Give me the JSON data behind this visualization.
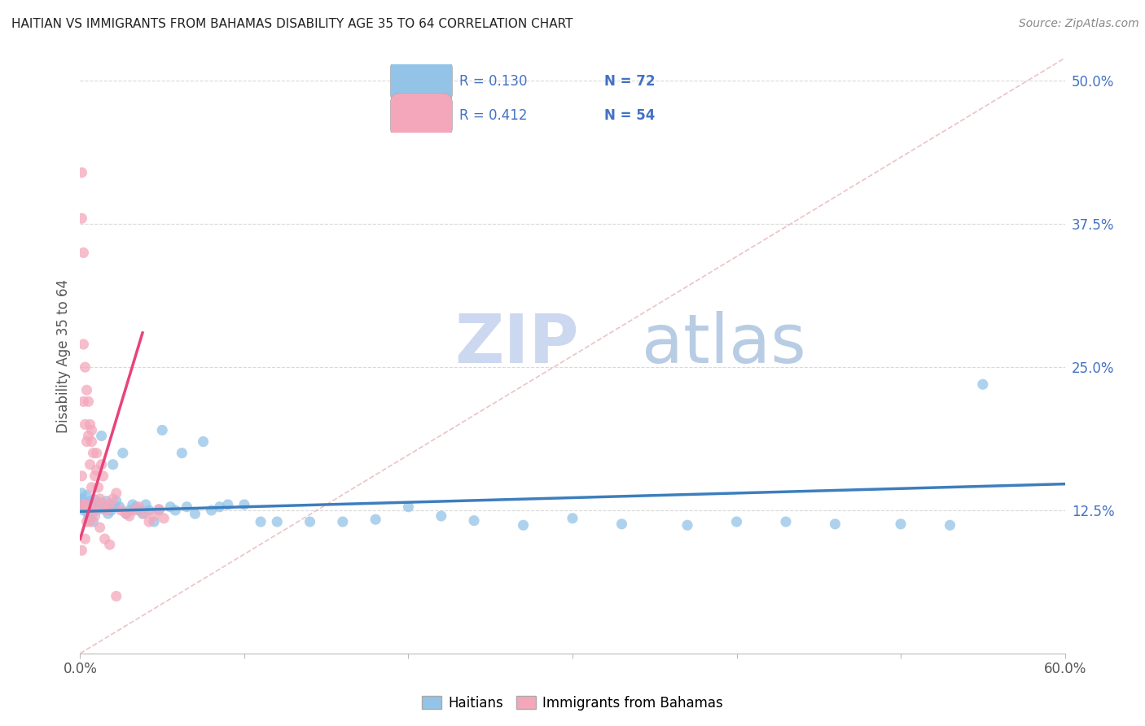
{
  "title": "HAITIAN VS IMMIGRANTS FROM BAHAMAS DISABILITY AGE 35 TO 64 CORRELATION CHART",
  "source": "Source: ZipAtlas.com",
  "ylabel": "Disability Age 35 to 64",
  "xlim": [
    0.0,
    0.6
  ],
  "ylim": [
    0.0,
    0.52
  ],
  "blue_color": "#93c4e8",
  "pink_color": "#f4a7bb",
  "trend_blue": "#3d7ebd",
  "trend_pink": "#e8437a",
  "diag_color": "#e8b4b8",
  "grid_color": "#d0d0d0",
  "title_color": "#222222",
  "right_tick_color": "#4472c4",
  "watermark_zip_color": "#d0dff5",
  "watermark_atlas_color": "#c0d0e8",
  "legend_text_color": "#4472c4",
  "legend_n_color": "#e05080",
  "blue_trend_start_x": 0.0,
  "blue_trend_start_y": 0.124,
  "blue_trend_end_x": 0.6,
  "blue_trend_end_y": 0.148,
  "pink_trend_start_x": 0.0,
  "pink_trend_start_y": 0.1,
  "pink_trend_end_x": 0.038,
  "pink_trend_end_y": 0.28,
  "haitians_x": [
    0.001,
    0.001,
    0.002,
    0.002,
    0.003,
    0.003,
    0.004,
    0.004,
    0.005,
    0.005,
    0.005,
    0.006,
    0.006,
    0.007,
    0.008,
    0.008,
    0.009,
    0.01,
    0.01,
    0.011,
    0.012,
    0.013,
    0.014,
    0.015,
    0.016,
    0.017,
    0.018,
    0.019,
    0.02,
    0.021,
    0.022,
    0.024,
    0.026,
    0.028,
    0.03,
    0.032,
    0.034,
    0.036,
    0.038,
    0.04,
    0.042,
    0.045,
    0.048,
    0.05,
    0.055,
    0.058,
    0.062,
    0.065,
    0.07,
    0.075,
    0.08,
    0.085,
    0.09,
    0.1,
    0.11,
    0.12,
    0.14,
    0.16,
    0.18,
    0.2,
    0.22,
    0.24,
    0.27,
    0.3,
    0.33,
    0.37,
    0.4,
    0.43,
    0.46,
    0.5,
    0.53,
    0.55
  ],
  "haitians_y": [
    0.135,
    0.14,
    0.125,
    0.132,
    0.128,
    0.13,
    0.138,
    0.125,
    0.122,
    0.13,
    0.118,
    0.127,
    0.133,
    0.121,
    0.129,
    0.115,
    0.134,
    0.125,
    0.13,
    0.128,
    0.132,
    0.19,
    0.126,
    0.128,
    0.133,
    0.122,
    0.13,
    0.125,
    0.165,
    0.128,
    0.133,
    0.128,
    0.175,
    0.122,
    0.125,
    0.13,
    0.128,
    0.125,
    0.122,
    0.13,
    0.125,
    0.115,
    0.125,
    0.195,
    0.128,
    0.125,
    0.175,
    0.128,
    0.122,
    0.185,
    0.125,
    0.128,
    0.13,
    0.13,
    0.115,
    0.115,
    0.115,
    0.115,
    0.117,
    0.128,
    0.12,
    0.116,
    0.112,
    0.118,
    0.113,
    0.112,
    0.115,
    0.115,
    0.113,
    0.113,
    0.112,
    0.235
  ],
  "bahamas_x": [
    0.001,
    0.001,
    0.002,
    0.002,
    0.002,
    0.003,
    0.003,
    0.004,
    0.004,
    0.005,
    0.005,
    0.006,
    0.006,
    0.007,
    0.007,
    0.008,
    0.009,
    0.01,
    0.01,
    0.011,
    0.012,
    0.013,
    0.014,
    0.015,
    0.016,
    0.018,
    0.02,
    0.022,
    0.025,
    0.028,
    0.03,
    0.033,
    0.036,
    0.039,
    0.042,
    0.045,
    0.048,
    0.051,
    0.001,
    0.001,
    0.002,
    0.003,
    0.003,
    0.004,
    0.005,
    0.006,
    0.007,
    0.008,
    0.009,
    0.01,
    0.012,
    0.015,
    0.018,
    0.022
  ],
  "bahamas_y": [
    0.42,
    0.38,
    0.35,
    0.27,
    0.22,
    0.25,
    0.2,
    0.23,
    0.185,
    0.22,
    0.19,
    0.2,
    0.165,
    0.195,
    0.185,
    0.175,
    0.155,
    0.175,
    0.16,
    0.145,
    0.135,
    0.165,
    0.155,
    0.13,
    0.125,
    0.13,
    0.135,
    0.14,
    0.125,
    0.122,
    0.12,
    0.125,
    0.128,
    0.122,
    0.115,
    0.12,
    0.126,
    0.118,
    0.155,
    0.09,
    0.13,
    0.13,
    0.1,
    0.115,
    0.125,
    0.115,
    0.145,
    0.125,
    0.12,
    0.13,
    0.11,
    0.1,
    0.095,
    0.05
  ]
}
